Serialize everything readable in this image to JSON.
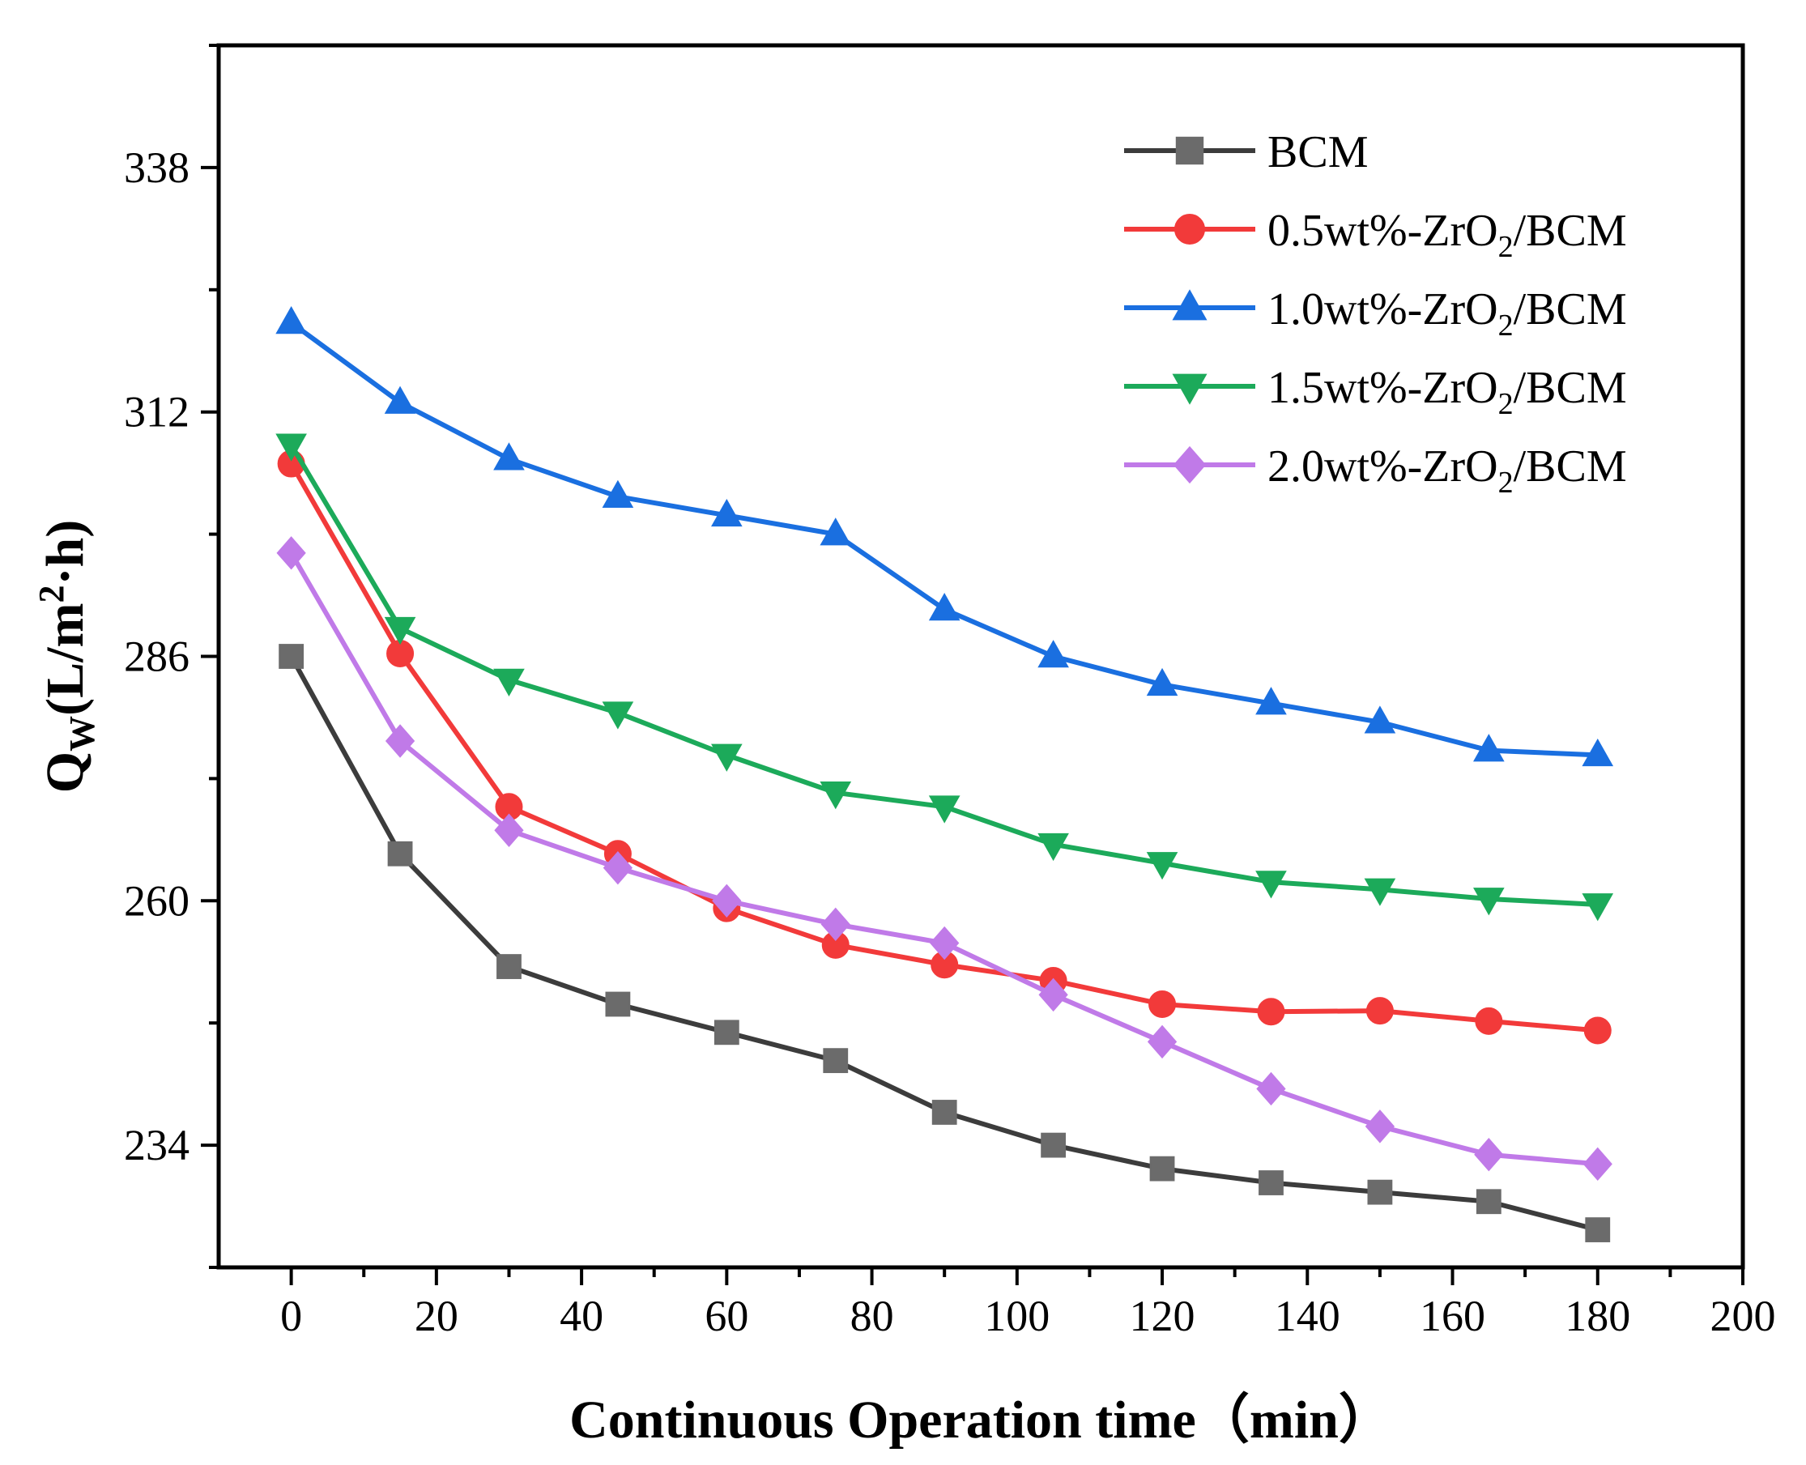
{
  "chart_data": {
    "type": "line",
    "title": "",
    "xlabel": "Continuous Operation time（min）",
    "ylabel": "Q",
    "ylabel_sub": "W",
    "ylabel_rest": "(L/m",
    "ylabel_sup": "2",
    "ylabel_end": "·h)",
    "xlim": [
      -10,
      200
    ],
    "ylim": [
      221,
      351
    ],
    "xticks": [
      0,
      20,
      40,
      60,
      80,
      100,
      120,
      140,
      160,
      180,
      200
    ],
    "yticks": [
      234,
      260,
      286,
      312,
      338
    ],
    "x": [
      0,
      15,
      30,
      45,
      60,
      75,
      90,
      105,
      120,
      135,
      150,
      165,
      180
    ],
    "legend_position": "top-right",
    "series": [
      {
        "name": "BCM",
        "prefix": "BCM",
        "subscript": "",
        "suffix": "",
        "color": "#6b6b6b",
        "line_color": "#3c3c3c",
        "marker": "square",
        "values": [
          286,
          265,
          253,
          249,
          246,
          243,
          237.5,
          234,
          231.5,
          230,
          229,
          228,
          225
        ]
      },
      {
        "name": "0.5wt%-ZrO2/BCM",
        "prefix": "0.5wt%-ZrO",
        "subscript": "2",
        "suffix": "/BCM",
        "color": "#f23a3a",
        "line_color": "#f23a3a",
        "marker": "circle",
        "values": [
          306.5,
          286.3,
          270,
          265,
          259.2,
          255.3,
          253.2,
          251.5,
          249,
          248.2,
          248.3,
          247.2,
          246.2
        ]
      },
      {
        "name": "1.0wt%-ZrO2/BCM",
        "prefix": "1.0wt%-ZrO",
        "subscript": "2",
        "suffix": "/BCM",
        "color": "#1a6fe0",
        "line_color": "#1a6fe0",
        "marker": "triangle-up",
        "values": [
          321.5,
          313,
          307,
          303,
          301,
          299,
          291,
          286,
          283,
          281,
          279,
          276,
          275.5
        ]
      },
      {
        "name": "1.5wt%-ZrO2/BCM",
        "prefix": "1.5wt%-ZrO",
        "subscript": "2",
        "suffix": "/BCM",
        "color": "#1caa5a",
        "line_color": "#1caa5a",
        "marker": "triangle-down",
        "values": [
          308.5,
          289,
          283.5,
          280,
          275.5,
          271.5,
          270,
          266,
          264,
          262,
          261.2,
          260.2,
          259.6
        ]
      },
      {
        "name": "2.0wt%-ZrO2/BCM",
        "prefix": "2.0wt%-ZrO",
        "subscript": "2",
        "suffix": "/BCM",
        "color": "#c07ae8",
        "line_color": "#c07ae8",
        "marker": "diamond",
        "values": [
          297,
          277,
          267.5,
          263.5,
          260,
          257.5,
          255.5,
          250,
          245,
          240,
          236,
          233,
          232
        ]
      }
    ]
  }
}
